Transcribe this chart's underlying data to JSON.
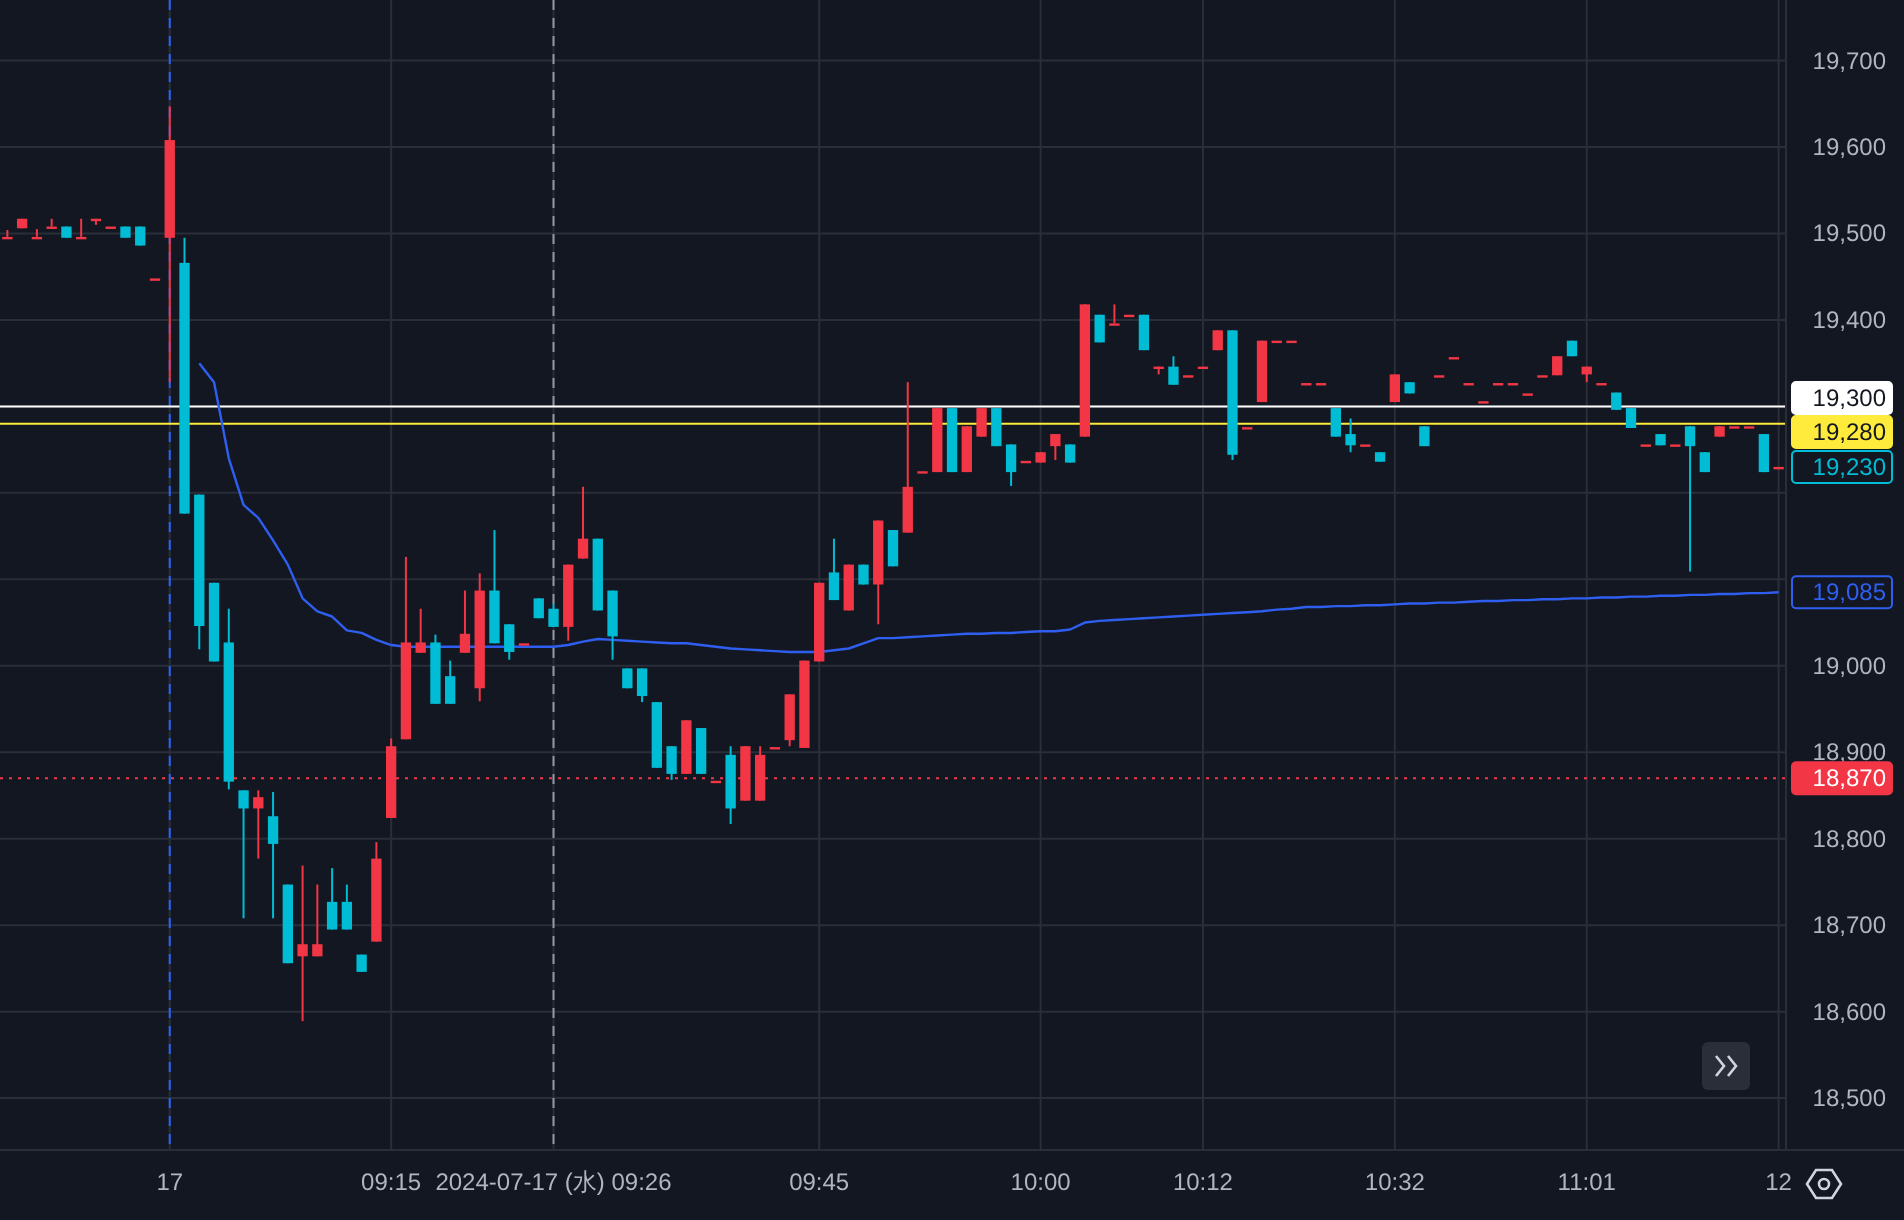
{
  "chart_data": {
    "type": "candlestick",
    "categories": [
      null,
      null,
      null,
      null,
      null,
      null,
      null,
      null,
      null,
      null,
      null,
      "17",
      null,
      null,
      null,
      null,
      null,
      null,
      null,
      null,
      null,
      null,
      null,
      null,
      null,
      null,
      "09:15",
      null,
      null,
      null,
      null,
      null,
      null,
      null,
      null,
      null,
      null,
      "2024-07-17 (水) 09:26",
      null,
      null,
      null,
      null,
      null,
      null,
      null,
      null,
      null,
      null,
      null,
      null,
      null,
      null,
      null,
      null,
      null,
      "09:45",
      null,
      null,
      null,
      null,
      null,
      null,
      null,
      null,
      null,
      null,
      null,
      null,
      null,
      null,
      "10:00",
      null,
      null,
      null,
      null,
      null,
      null,
      null,
      null,
      null,
      null,
      "10:12",
      null,
      null,
      null,
      null,
      null,
      null,
      null,
      null,
      null,
      null,
      null,
      null,
      "10:32",
      null,
      null,
      null,
      null,
      null,
      null,
      null,
      null,
      null,
      null,
      null,
      null,
      "11:01",
      null,
      null,
      null,
      null,
      null,
      null,
      null,
      null,
      null,
      null,
      null,
      null,
      "12"
    ],
    "ohlc": [
      [
        19496,
        19504,
        19496,
        19496
      ],
      [
        19506,
        19517,
        19506,
        19517
      ],
      [
        19496,
        19505,
        19496,
        19496
      ],
      [
        19508,
        19517,
        19508,
        19508
      ],
      [
        19508,
        19508,
        19495,
        19495
      ],
      [
        19496,
        19517,
        19496,
        19496
      ],
      [
        19517,
        19517,
        19510,
        19517
      ],
      [
        19508,
        19508,
        19508,
        19508
      ],
      [
        19508,
        19508,
        19495,
        19495
      ],
      [
        19508,
        19508,
        19486,
        19486
      ],
      [
        19448,
        19448,
        19448,
        19448
      ],
      [
        19495,
        19647,
        19328,
        19608
      ],
      [
        19466,
        19495,
        19176,
        19176
      ],
      [
        19198,
        19198,
        19019,
        19046
      ],
      [
        19096,
        19096,
        19005,
        19005
      ],
      [
        19027,
        19066,
        18857,
        18866
      ],
      [
        18856,
        18856,
        18708,
        18835
      ],
      [
        18835,
        18856,
        18777,
        18848
      ],
      [
        18826,
        18854,
        18708,
        18794
      ],
      [
        18747,
        18747,
        18656,
        18656
      ],
      [
        18664,
        18769,
        18589,
        18678
      ],
      [
        18664,
        18747,
        18664,
        18678
      ],
      [
        18727,
        18766,
        18695,
        18695
      ],
      [
        18727,
        18747,
        18695,
        18695
      ],
      [
        18666,
        18666,
        18646,
        18646
      ],
      [
        18681,
        18796,
        18681,
        18777
      ],
      [
        18824,
        18916,
        18824,
        18907
      ],
      [
        18915,
        19126,
        18915,
        19027
      ],
      [
        19015,
        19066,
        19015,
        19027
      ],
      [
        19027,
        19036,
        18956,
        18956
      ],
      [
        18988,
        19006,
        18956,
        18956
      ],
      [
        19015,
        19087,
        19015,
        19037
      ],
      [
        18974,
        19107,
        18959,
        19087
      ],
      [
        19087,
        19157,
        19026,
        19026
      ],
      [
        19048,
        19048,
        19007,
        19016
      ],
      [
        19026,
        19026,
        19026,
        19026
      ],
      [
        19078,
        19078,
        19055,
        19055
      ],
      [
        19066,
        19072,
        19045,
        19045
      ],
      [
        19045,
        19117,
        19029,
        19117
      ],
      [
        19124,
        19207,
        19124,
        19147
      ],
      [
        19147,
        19147,
        19064,
        19064
      ],
      [
        19087,
        19087,
        19007,
        19034
      ],
      [
        18997,
        18997,
        18974,
        18974
      ],
      [
        18997,
        18997,
        18958,
        18965
      ],
      [
        18958,
        18958,
        18882,
        18882
      ],
      [
        18907,
        18907,
        18868,
        18875
      ],
      [
        18875,
        18937,
        18875,
        18937
      ],
      [
        18928,
        18928,
        18875,
        18875
      ],
      [
        18867,
        18867,
        18867,
        18867
      ],
      [
        18897,
        18907,
        18817,
        18835
      ],
      [
        18844,
        18907,
        18844,
        18907
      ],
      [
        18844,
        18907,
        18844,
        18897
      ],
      [
        18906,
        18906,
        18906,
        18906
      ],
      [
        18914,
        18967,
        18907,
        18967
      ],
      [
        18905,
        19006,
        18905,
        19006
      ],
      [
        19005,
        19096,
        19005,
        19096
      ],
      [
        19108,
        19147,
        19076,
        19076
      ],
      [
        19064,
        19117,
        19064,
        19117
      ],
      [
        19117,
        19117,
        19094,
        19094
      ],
      [
        19094,
        19168,
        19048,
        19168
      ],
      [
        19157,
        19157,
        19115,
        19115
      ],
      [
        19154,
        19328,
        19154,
        19207
      ],
      [
        19225,
        19225,
        19225,
        19225
      ],
      [
        19224,
        19298,
        19224,
        19298
      ],
      [
        19298,
        19298,
        19224,
        19224
      ],
      [
        19224,
        19277,
        19224,
        19277
      ],
      [
        19265,
        19298,
        19265,
        19298
      ],
      [
        19298,
        19298,
        19254,
        19254
      ],
      [
        19256,
        19256,
        19208,
        19224
      ],
      [
        19237,
        19237,
        19237,
        19237
      ],
      [
        19235,
        19247,
        19235,
        19247
      ],
      [
        19254,
        19268,
        19238,
        19268
      ],
      [
        19256,
        19256,
        19235,
        19235
      ],
      [
        19265,
        19418,
        19265,
        19418
      ],
      [
        19406,
        19406,
        19374,
        19374
      ],
      [
        19396,
        19418,
        19396,
        19396
      ],
      [
        19406,
        19406,
        19406,
        19406
      ],
      [
        19406,
        19406,
        19365,
        19365
      ],
      [
        19346,
        19346,
        19337,
        19346
      ],
      [
        19346,
        19358,
        19325,
        19325
      ],
      [
        19336,
        19336,
        19336,
        19336
      ],
      [
        19346,
        19346,
        19346,
        19346
      ],
      [
        19365,
        19388,
        19365,
        19388
      ],
      [
        19388,
        19388,
        19238,
        19244
      ],
      [
        19276,
        19276,
        19276,
        19276
      ],
      [
        19305,
        19376,
        19305,
        19376
      ],
      [
        19376,
        19376,
        19376,
        19376
      ],
      [
        19376,
        19376,
        19376,
        19376
      ],
      [
        19327,
        19327,
        19327,
        19327
      ],
      [
        19327,
        19327,
        19327,
        19327
      ],
      [
        19298,
        19298,
        19265,
        19265
      ],
      [
        19268,
        19286,
        19247,
        19255
      ],
      [
        19256,
        19256,
        19256,
        19256
      ],
      [
        19247,
        19247,
        19236,
        19236
      ],
      [
        19305,
        19337,
        19305,
        19337
      ],
      [
        19328,
        19328,
        19315,
        19315
      ],
      [
        19277,
        19277,
        19254,
        19254
      ],
      [
        19336,
        19336,
        19336,
        19336
      ],
      [
        19357,
        19357,
        19357,
        19357
      ],
      [
        19327,
        19327,
        19327,
        19327
      ],
      [
        19306,
        19306,
        19306,
        19306
      ],
      [
        19327,
        19327,
        19327,
        19327
      ],
      [
        19327,
        19327,
        19327,
        19327
      ],
      [
        19315,
        19315,
        19315,
        19315
      ],
      [
        19336,
        19336,
        19336,
        19336
      ],
      [
        19336,
        19358,
        19336,
        19358
      ],
      [
        19376,
        19376,
        19358,
        19358
      ],
      [
        19337,
        19346,
        19328,
        19346
      ],
      [
        19327,
        19327,
        19327,
        19327
      ],
      [
        19316,
        19316,
        19296,
        19296
      ],
      [
        19298,
        19298,
        19275,
        19275
      ],
      [
        19256,
        19256,
        19256,
        19256
      ],
      [
        19268,
        19268,
        19255,
        19255
      ],
      [
        19256,
        19256,
        19256,
        19256
      ],
      [
        19277,
        19277,
        19109,
        19254
      ],
      [
        19247,
        19247,
        19224,
        19224
      ],
      [
        19265,
        19277,
        19265,
        19277
      ],
      [
        19277,
        19277,
        19277,
        19277
      ],
      [
        19277,
        19277,
        19277,
        19277
      ],
      [
        19268,
        19268,
        19224,
        19224
      ],
      [
        19230,
        19230,
        19230,
        19230
      ]
    ],
    "colors": [
      "#f23645",
      "#f23645",
      "#f23645",
      "#f23645",
      "#00bcd4",
      "#f23645",
      "#f23645",
      "#f23645",
      "#00bcd4",
      "#00bcd4",
      "#f23645",
      "#f23645",
      "#00bcd4",
      "#00bcd4",
      "#00bcd4",
      "#00bcd4",
      "#00bcd4",
      "#f23645",
      "#00bcd4",
      "#00bcd4",
      "#f23645",
      "#f23645",
      "#00bcd4",
      "#00bcd4",
      "#00bcd4",
      "#f23645",
      "#f23645",
      "#f23645",
      "#f23645",
      "#00bcd4",
      "#00bcd4",
      "#f23645",
      "#f23645",
      "#00bcd4",
      "#00bcd4",
      "#f23645",
      "#00bcd4",
      "#00bcd4",
      "#f23645",
      "#f23645",
      "#00bcd4",
      "#00bcd4",
      "#00bcd4",
      "#00bcd4",
      "#00bcd4",
      "#00bcd4",
      "#f23645",
      "#00bcd4",
      "#f23645",
      "#00bcd4",
      "#f23645",
      "#f23645",
      "#f23645",
      "#f23645",
      "#f23645",
      "#f23645",
      "#00bcd4",
      "#f23645",
      "#00bcd4",
      "#f23645",
      "#00bcd4",
      "#f23645",
      "#f23645",
      "#f23645",
      "#00bcd4",
      "#f23645",
      "#f23645",
      "#00bcd4",
      "#00bcd4",
      "#f23645",
      "#f23645",
      "#f23645",
      "#00bcd4",
      "#f23645",
      "#00bcd4",
      "#f23645",
      "#f23645",
      "#00bcd4",
      "#f23645",
      "#00bcd4",
      "#f23645",
      "#f23645",
      "#f23645",
      "#00bcd4",
      "#f23645",
      "#f23645",
      "#f23645",
      "#f23645",
      "#f23645",
      "#f23645",
      "#00bcd4",
      "#00bcd4",
      "#f23645",
      "#00bcd4",
      "#f23645",
      "#00bcd4",
      "#00bcd4",
      "#f23645",
      "#f23645",
      "#f23645",
      "#f23645",
      "#f23645",
      "#f23645",
      "#f23645",
      "#f23645",
      "#f23645",
      "#00bcd4",
      "#f23645",
      "#f23645",
      "#00bcd4",
      "#00bcd4",
      "#f23645",
      "#00bcd4",
      "#f23645",
      "#00bcd4",
      "#00bcd4",
      "#f23645",
      "#f23645",
      "#f23645",
      "#00bcd4",
      "#f23645"
    ],
    "series": [
      {
        "type": "line",
        "color": "#2f5ff0",
        "value_labels": [
          null,
          null,
          null,
          null,
          null,
          null,
          null,
          null,
          null,
          null,
          null,
          null,
          null,
          null,
          null,
          null,
          null,
          null,
          null,
          null,
          null,
          null,
          null,
          null,
          null,
          null,
          null,
          null,
          null,
          null,
          null,
          null,
          null,
          null,
          null,
          null,
          null,
          null,
          null,
          null,
          null,
          null,
          null,
          null,
          null,
          null,
          null,
          null,
          null,
          null,
          null,
          null,
          null,
          null,
          null,
          null,
          null,
          null,
          null,
          null,
          null,
          null,
          null,
          null,
          null,
          null,
          null,
          null,
          null,
          null,
          null,
          null,
          null,
          null,
          null,
          null,
          null,
          null,
          null,
          null,
          null,
          null,
          null,
          null,
          null,
          null,
          null,
          null,
          null,
          null,
          null,
          null,
          null,
          null,
          null,
          null,
          null,
          null,
          null,
          null,
          null,
          null,
          null,
          null,
          null,
          null,
          null,
          null,
          null,
          null,
          null,
          null,
          null,
          null,
          null,
          null,
          null,
          null,
          null,
          null,
          "19,085"
        ],
        "values": [
          null,
          null,
          null,
          null,
          null,
          null,
          null,
          null,
          null,
          null,
          null,
          null,
          null,
          19350,
          19328,
          19240,
          19186,
          19171,
          19145,
          19117,
          19078,
          19063,
          19057,
          19041,
          19038,
          19030,
          19024,
          19022,
          19022,
          19022,
          19022,
          19022,
          19022,
          19022,
          19022,
          19022,
          19022,
          19022,
          19024,
          19028,
          19031,
          19030,
          19029,
          19028,
          19027,
          19026,
          19026,
          19024,
          19022,
          19020,
          19019,
          19018,
          19017,
          19016,
          19016,
          19016,
          19018,
          19020,
          19026,
          19032,
          19032,
          19033,
          19034,
          19035,
          19036,
          19037,
          19037,
          19038,
          19038,
          19039,
          19040,
          19040,
          19042,
          19050,
          19052,
          19053,
          19054,
          19055,
          19056,
          19057,
          19058,
          19059,
          19060,
          19061,
          19062,
          19063,
          19065,
          19066,
          19068,
          19068,
          19069,
          19069,
          19070,
          19070,
          19071,
          19072,
          19072,
          19073,
          19073,
          19074,
          19075,
          19075,
          19076,
          19076,
          19077,
          19077,
          19078,
          19078,
          19079,
          19079,
          19080,
          19080,
          19081,
          19081,
          19082,
          19082,
          19083,
          19083,
          19084,
          19084,
          19085
        ]
      }
    ],
    "ylim": [
      18440,
      19770
    ],
    "yticks": [
      {
        "value": 18500,
        "label": "18,500"
      },
      {
        "value": 18600,
        "label": "18,600"
      },
      {
        "value": 18700,
        "label": "18,700"
      },
      {
        "value": 18800,
        "label": "18,800"
      },
      {
        "value": 18900,
        "label": "18,900"
      },
      {
        "value": 19000,
        "label": "19,000"
      },
      {
        "value": 19100,
        "label": null
      },
      {
        "value": 19200,
        "label": null
      },
      {
        "value": 19300,
        "label": null
      },
      {
        "value": 19400,
        "label": "19,400"
      },
      {
        "value": 19500,
        "label": "19,500"
      },
      {
        "value": 19600,
        "label": "19,600"
      },
      {
        "value": 19700,
        "label": "19,700"
      }
    ],
    "grid": true,
    "ref_lines": [
      {
        "axis": "x",
        "value": "17",
        "color": "#2962ff",
        "line_style": "dashed"
      },
      {
        "axis": "x",
        "value": "2024-07-17 (水) 09:26",
        "color": "#9598a1",
        "line_style": "dashed"
      },
      {
        "axis": "y",
        "value": 19300,
        "label": "19,300",
        "color": "#ffffff",
        "line_style": "solid"
      },
      {
        "axis": "y",
        "value": 19280,
        "label": "19,280",
        "color": "#ffeb3b",
        "line_style": "solid"
      },
      {
        "axis": "y",
        "value": 18870,
        "label": "18,870",
        "color": "#f23645",
        "line_style": "dotted"
      }
    ],
    "value_labels": [
      null,
      null,
      null,
      null,
      null,
      null,
      null,
      null,
      null,
      null,
      null,
      null,
      null,
      null,
      null,
      null,
      null,
      null,
      null,
      null,
      null,
      null,
      null,
      null,
      null,
      null,
      null,
      null,
      null,
      null,
      null,
      null,
      null,
      null,
      null,
      null,
      null,
      null,
      null,
      null,
      null,
      null,
      null,
      null,
      null,
      null,
      null,
      null,
      null,
      null,
      null,
      null,
      null,
      null,
      null,
      null,
      null,
      null,
      null,
      null,
      null,
      null,
      null,
      null,
      null,
      null,
      null,
      null,
      null,
      null,
      null,
      null,
      null,
      null,
      null,
      null,
      null,
      null,
      null,
      null,
      null,
      null,
      null,
      null,
      null,
      null,
      null,
      null,
      null,
      null,
      null,
      null,
      null,
      null,
      null,
      null,
      null,
      null,
      null,
      null,
      null,
      null,
      null,
      null,
      null,
      null,
      null,
      null,
      null,
      null,
      null,
      null,
      null,
      null,
      null,
      null,
      null,
      null,
      null,
      null,
      "19,230"
    ]
  }
}
